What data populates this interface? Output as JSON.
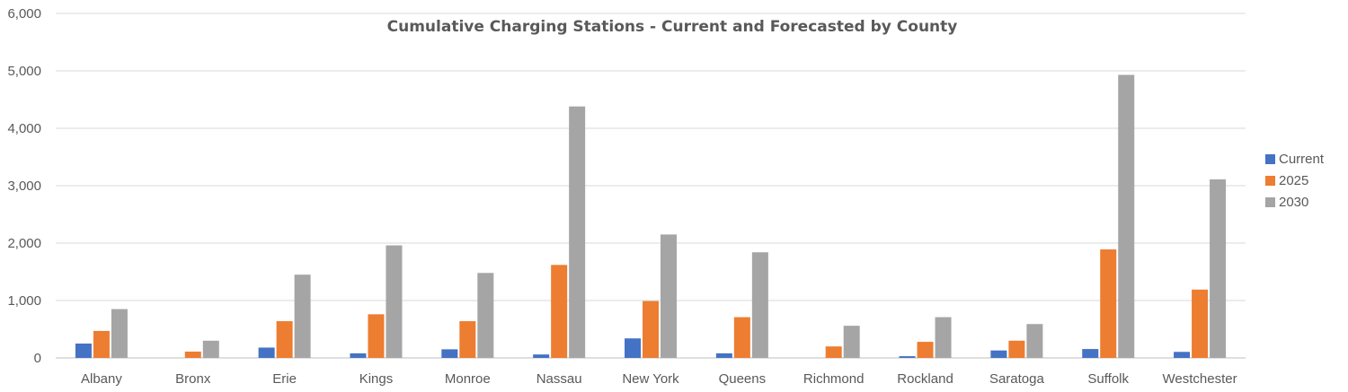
{
  "chart_data": {
    "type": "bar",
    "title": "Cumulative Charging Stations - Current and Forecasted by County",
    "categories": [
      "Albany",
      "Bronx",
      "Erie",
      "Kings",
      "Monroe",
      "Nassau",
      "New York",
      "Queens",
      "Richmond",
      "Rockland",
      "Saratoga",
      "Suffolk",
      "Westchester"
    ],
    "series": [
      {
        "name": "Current",
        "color": "#4472c4",
        "values": [
          250,
          0,
          180,
          80,
          150,
          60,
          340,
          80,
          0,
          30,
          130,
          155,
          105
        ]
      },
      {
        "name": "2025",
        "color": "#ed7d31",
        "values": [
          470,
          110,
          640,
          760,
          640,
          1620,
          990,
          710,
          200,
          280,
          300,
          1890,
          1190
        ]
      },
      {
        "name": "2030",
        "color": "#a5a5a5",
        "values": [
          850,
          300,
          1450,
          1960,
          1480,
          4380,
          2150,
          1840,
          560,
          710,
          590,
          4930,
          3110
        ]
      }
    ],
    "ylim": [
      0,
      6000
    ],
    "yticks": [
      "0",
      "1,000",
      "2,000",
      "3,000",
      "4,000",
      "5,000",
      "6,000"
    ],
    "ytick_values": [
      0,
      1000,
      2000,
      3000,
      4000,
      5000,
      6000
    ],
    "xlabel": "",
    "ylabel": "",
    "grid": true,
    "legend_position": "right"
  }
}
